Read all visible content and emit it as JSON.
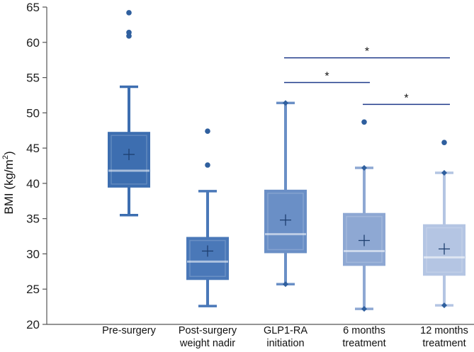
{
  "chart_data": {
    "type": "box",
    "ylabel": "BMI (kg/m",
    "ylabel_sup": "2",
    "ylabel_close": ")",
    "ylim": [
      20,
      65
    ],
    "yticks": [
      20,
      25,
      30,
      35,
      40,
      45,
      50,
      55,
      60,
      65
    ],
    "categories": [
      {
        "lines": [
          "Pre-surgery"
        ]
      },
      {
        "lines": [
          "Post-surgery",
          "weight nadir"
        ]
      },
      {
        "lines": [
          "GLP1-RA",
          "initiation"
        ]
      },
      {
        "lines": [
          "6 months",
          "treatment"
        ]
      },
      {
        "lines": [
          "12 months",
          "treatment"
        ]
      }
    ],
    "boxes": [
      {
        "name": "Pre-surgery",
        "min": 35.5,
        "q1": 39.5,
        "median": 41.8,
        "q3": 47.2,
        "max": 53.7,
        "mean": 44.1,
        "outliers": [
          64.2,
          61.4,
          60.9
        ],
        "color": "#3d6eb0",
        "whisker_cap": "line"
      },
      {
        "name": "Post-surgery weight nadir",
        "min": 22.6,
        "q1": 26.4,
        "median": 28.9,
        "q3": 32.3,
        "max": 38.9,
        "mean": 30.4,
        "outliers": [
          47.4,
          42.6
        ],
        "color": "#4a78b8",
        "whisker_cap": "line"
      },
      {
        "name": "GLP1-RA initiation",
        "min": 25.7,
        "q1": 30.2,
        "median": 32.8,
        "q3": 39.0,
        "max": 51.4,
        "mean": 34.8,
        "outliers": [],
        "color": "#6a8fc6",
        "whisker_cap": "diamond"
      },
      {
        "name": "6 months treatment",
        "min": 22.2,
        "q1": 28.4,
        "median": 30.4,
        "q3": 35.7,
        "max": 42.2,
        "mean": 31.9,
        "outliers": [
          48.7
        ],
        "color": "#8ea8d3",
        "whisker_cap": "diamond"
      },
      {
        "name": "12 months treatment",
        "min": 22.7,
        "q1": 27.0,
        "median": 29.5,
        "q3": 34.1,
        "max": 41.5,
        "mean": 30.7,
        "outliers": [
          45.8
        ],
        "color": "#b4c5e3",
        "whisker_cap": "diamond"
      }
    ],
    "significance": [
      {
        "from": 2,
        "to": 4,
        "y": 57.8,
        "label": "*"
      },
      {
        "from": 2,
        "to": 3,
        "y": 54.3,
        "label": "*"
      },
      {
        "from": 3,
        "to": 4,
        "y": 51.2,
        "label": "*"
      }
    ],
    "colors": {
      "bracket": "#1f3a8a",
      "axis": "#555555",
      "outlier": "#2f5f9e"
    }
  }
}
